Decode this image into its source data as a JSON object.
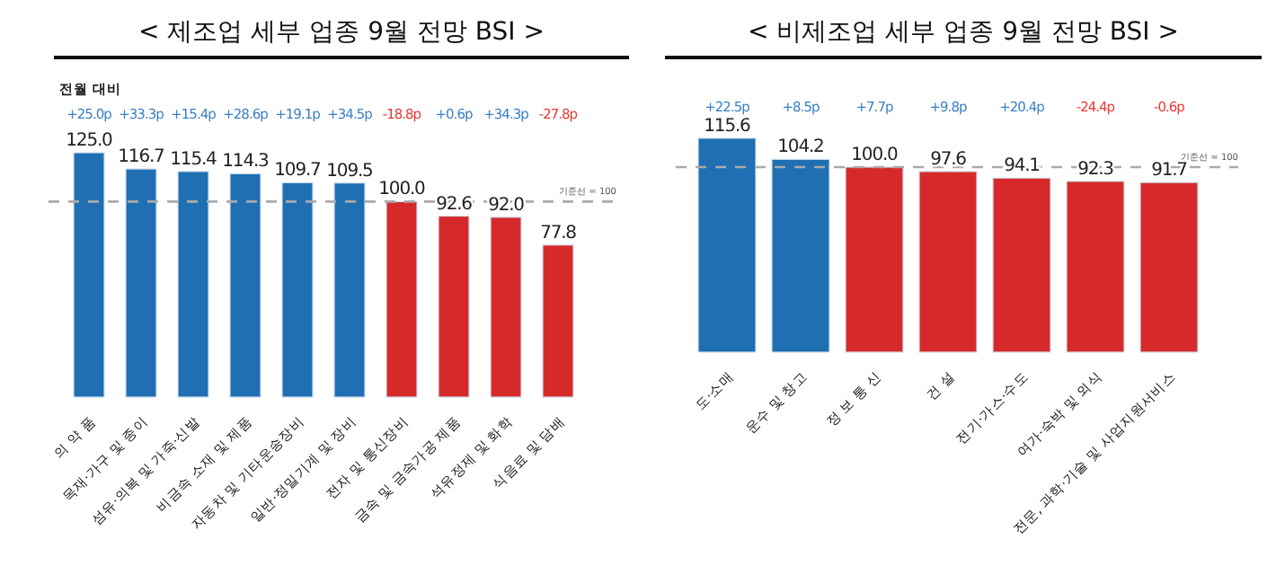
{
  "chart_data": [
    {
      "type": "bar",
      "title": "< 제조업 세부 업종 9월 전망 BSI >",
      "categories": [
        "의 약 품",
        "목재·가구 및 종이",
        "섬유·의복 및 가죽·신발",
        "비금속 소재 및 제품",
        "자동차 및 기타운송장비",
        "일반·정밀기계 및 장비",
        "전자 및 통신장비",
        "금속 및 금속가공 제품",
        "석유정제 및 화학",
        "식음료 및 담배"
      ],
      "values": [
        125.0,
        116.7,
        115.4,
        114.3,
        109.7,
        109.5,
        100.0,
        92.6,
        92.0,
        77.8
      ],
      "value_labels": [
        "125.0",
        "116.7",
        "115.4",
        "114.3",
        "109.7",
        "109.5",
        "100.0",
        "92.6",
        "92.0",
        "77.8"
      ],
      "colors": [
        "#1f6fb2",
        "#1f6fb2",
        "#1f6fb2",
        "#1f6fb2",
        "#1f6fb2",
        "#1f6fb2",
        "#d62a2a",
        "#d62a2a",
        "#d62a2a",
        "#d62a2a"
      ],
      "ref_lines": [
        {
          "axis": "y",
          "value": 100,
          "label": "기준선 = 100",
          "color": "#aaaaaa",
          "line_style": "dashed"
        }
      ],
      "annotations": [
        "전월 대비",
        "+25.0p",
        "+33.3p",
        "+15.4p",
        "+28.6p",
        "+19.1p",
        "+34.5p",
        "-18.8p",
        "+0.6p",
        "+34.3p",
        "-27.8p"
      ]
    },
    {
      "type": "bar",
      "title": "< 비제조업 세부 업종 9월 전망 BSI >",
      "categories": [
        "도·소매",
        "운수 및 창고",
        "정 보 통 신",
        "건 설",
        "전기·가스·수도",
        "여가·숙박 및 외식",
        "전문, 과학·기술 및 사업지원서비스"
      ],
      "values": [
        115.6,
        104.2,
        100.0,
        97.6,
        94.1,
        92.3,
        91.7
      ],
      "value_labels": [
        "115.6",
        "104.2",
        "100.0",
        "97.6",
        "94.1",
        "92.3",
        "91.7"
      ],
      "colors": [
        "#1f6fb2",
        "#1f6fb2",
        "#d62a2a",
        "#d62a2a",
        "#d62a2a",
        "#d62a2a",
        "#d62a2a"
      ],
      "ref_lines": [
        {
          "axis": "y",
          "value": 100,
          "label": "기준선 = 100",
          "color": "#aaaaaa",
          "line_style": "dashed"
        }
      ],
      "annotations": [
        "+22.5p",
        "+8.5p",
        "+7.7p",
        "+9.8p",
        "+20.4p",
        "-24.4p",
        "-0.6p"
      ]
    }
  ]
}
